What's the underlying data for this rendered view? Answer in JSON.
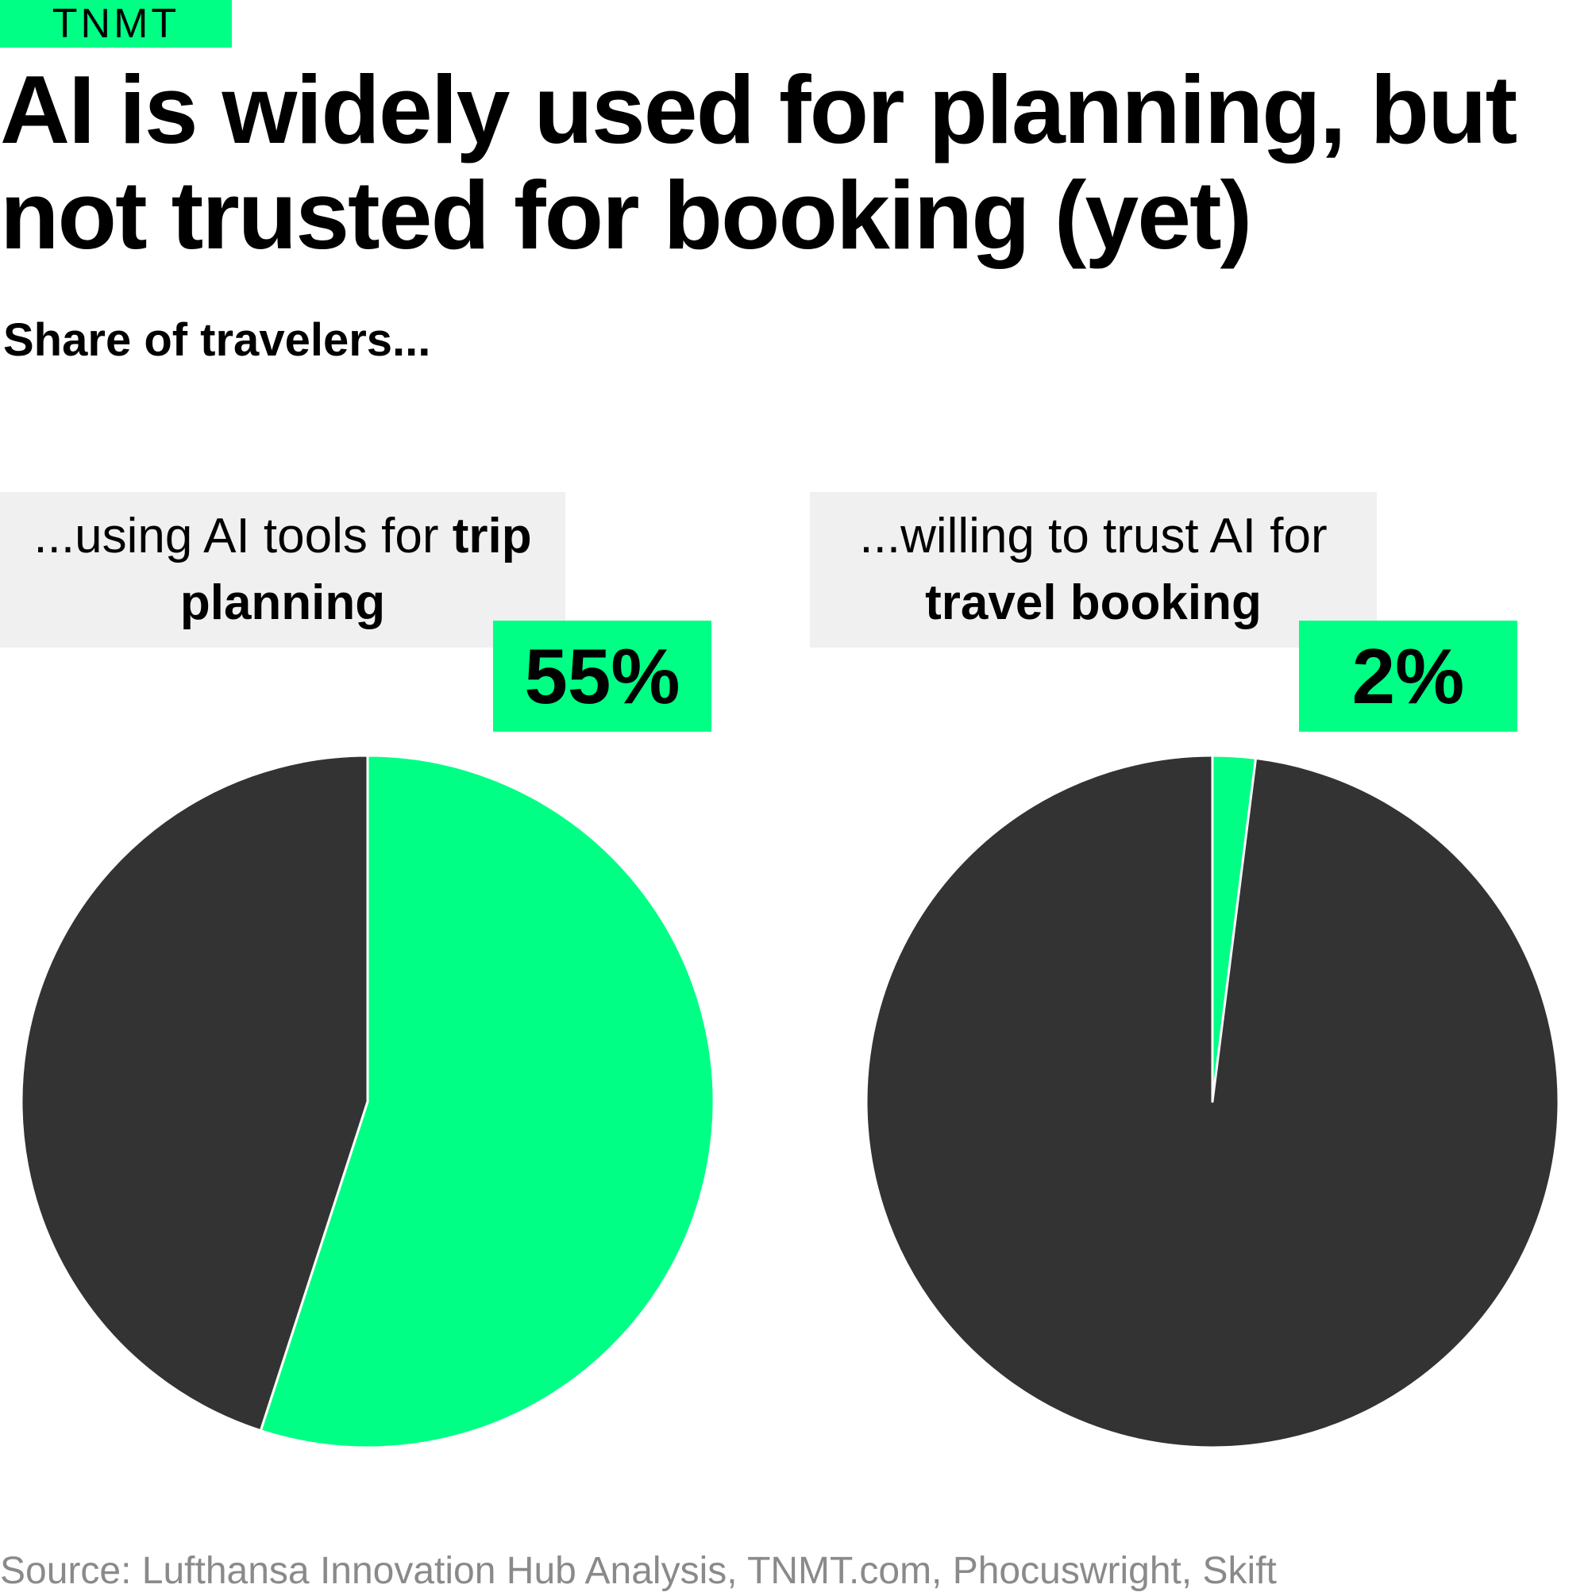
{
  "brand": "TNMT",
  "title_lines": [
    "AI is widely used for planning, but",
    "not trusted for booking (yet)"
  ],
  "subtitle": "Share of travelers...",
  "colors": {
    "accent": "#00ff85",
    "rest": "#333333",
    "label_bg": "#f0f0f0",
    "source_text": "#8a8a8a"
  },
  "panels": [
    {
      "label_plain": "...using AI tools for ",
      "label_bold_1": "trip",
      "label_bold_2": "planning",
      "value_label": "55%"
    },
    {
      "label_plain": "...willing to trust AI for",
      "label_bold_2": "travel booking",
      "value_label": "2%"
    }
  ],
  "chart_data": [
    {
      "type": "pie",
      "title": "...using AI tools for trip planning",
      "slices": [
        {
          "value": 55,
          "color": "#00ff85"
        },
        {
          "value": 45,
          "color": "#333333"
        }
      ]
    },
    {
      "type": "pie",
      "title": "...willing to trust AI for travel booking",
      "slices": [
        {
          "value": 2,
          "color": "#00ff85"
        },
        {
          "value": 98,
          "color": "#333333"
        }
      ]
    }
  ],
  "source": "Source: Lufthansa Innovation Hub Analysis, TNMT.com, Phocuswright, Skift"
}
